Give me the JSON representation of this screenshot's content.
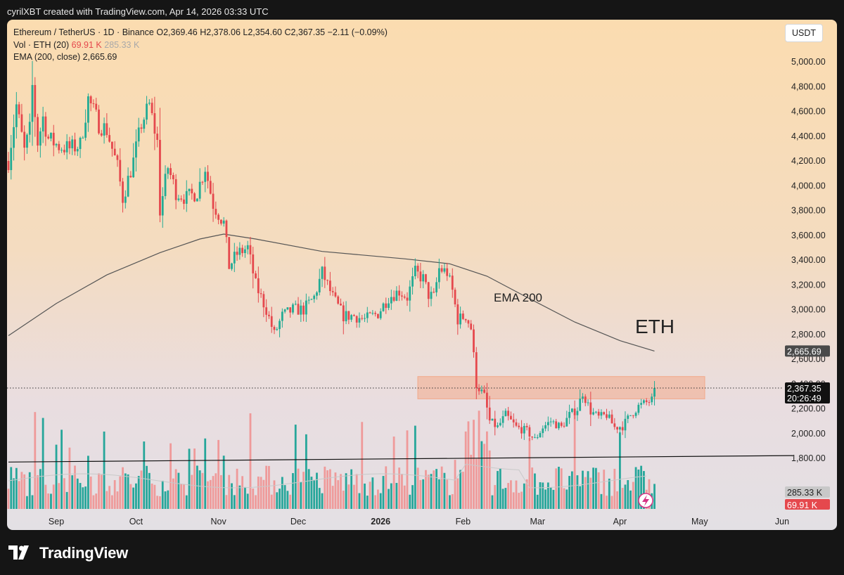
{
  "header": {
    "attribution": "cyrilXBT created with TradingView.com, Apr 14, 2026 03:33 UTC"
  },
  "legend": {
    "symbol_line": "Ethereum / TetherUS · 1D · Binance",
    "ohlc": "O2,369.46  H2,378.06  L2,354.60  C2,367.35  −2.11 (−0.09%)",
    "vol_label": "Vol · ETH (20)",
    "vol_value": "69.91 K",
    "vol_ma": "285.33 K",
    "ema_label": "EMA (200, close)",
    "ema_value": "2,665.69"
  },
  "currency_button": "USDT",
  "footer": {
    "logo_text": "TradingView",
    "logo_icon": "tradingview-logo-icon"
  },
  "badges": {
    "ema": "2,665.69",
    "price": "2,367.35",
    "countdown": "20:26:49",
    "vol_ma": "285.33 K",
    "vol": "69.91 K"
  },
  "colors": {
    "up": "#22ab94",
    "down": "#e5484d",
    "vol_up": "#26a69a",
    "vol_down": "#ef9a9a",
    "zone": "#f2a98a",
    "ema_line": "#555555"
  },
  "chart_data": {
    "type": "candlestick",
    "title": "Ethereum / TetherUS · 1D · Binance",
    "annotations": [
      "ETH",
      "EMA 200"
    ],
    "y_ticks": [
      1800,
      2000,
      2200,
      2400,
      2600,
      2800,
      3000,
      3200,
      3400,
      3600,
      3800,
      4000,
      4200,
      4400,
      4600,
      4800,
      5000
    ],
    "y_tick_labels": [
      "1,800.00",
      "2,000.00",
      "2,200.00",
      "2,400.00",
      "2,600.00",
      "2,800.00",
      "3,000.00",
      "3,200.00",
      "3,400.00",
      "3,600.00",
      "3,800.00",
      "4,000.00",
      "4,200.00",
      "4,400.00",
      "4,600.00",
      "4,800.00",
      "5,000.00"
    ],
    "x_labels": [
      "Sep",
      "Oct",
      "Nov",
      "Dec",
      "2026",
      "Feb",
      "Mar",
      "Apr",
      "May",
      "Jun"
    ],
    "ylim": [
      1580,
      5180
    ],
    "grid": false,
    "last_close": 2367.35,
    "resistance_zone": [
      2280,
      2460
    ],
    "ema200": [
      [
        "Aug 14, 2025",
        2790
      ],
      [
        "Sep 1, 2025",
        3050
      ],
      [
        "Sep 20, 2025",
        3280
      ],
      [
        "Oct 10, 2025",
        3460
      ],
      [
        "Oct 25, 2025",
        3570
      ],
      [
        "Nov 3, 2025",
        3610
      ],
      [
        "Nov 15, 2025",
        3570
      ],
      [
        "Dec 10, 2025",
        3470
      ],
      [
        "Jan 10, 2026",
        3410
      ],
      [
        "Jan 27, 2026",
        3370
      ],
      [
        "Feb 10, 2026",
        3270
      ],
      [
        "Feb 25, 2026",
        3100
      ],
      [
        "Mar 15, 2026",
        2900
      ],
      [
        "Apr 1, 2026",
        2750
      ],
      [
        "Apr 14, 2026",
        2665.69
      ]
    ],
    "trendline": [
      [
        "Aug 14, 2025",
        1770
      ],
      [
        "Jun 5, 2026",
        1822
      ]
    ],
    "price_path": [
      [
        "Aug 14, 2025",
        4200
      ],
      [
        "Aug 17, 2025",
        4650
      ],
      [
        "Aug 20, 2025",
        4280
      ],
      [
        "Aug 22, 2025",
        4450
      ],
      [
        "Aug 23, 2025",
        4800
      ],
      [
        "Aug 25, 2025",
        4350
      ],
      [
        "Aug 27, 2025",
        4550
      ],
      [
        "Aug 29, 2025",
        4380
      ],
      [
        "Sep 2, 2025",
        4320
      ],
      [
        "Sep 6, 2025",
        4300
      ],
      [
        "Sep 10, 2025",
        4330
      ],
      [
        "Sep 13, 2025",
        4700
      ],
      [
        "Sep 17, 2025",
        4500
      ],
      [
        "Sep 20, 2025",
        4450
      ],
      [
        "Sep 24, 2025",
        4150
      ],
      [
        "Sep 26, 2025",
        3900
      ],
      [
        "Sep 30, 2025",
        4200
      ],
      [
        "Oct 3, 2025",
        4500
      ],
      [
        "Oct 6, 2025",
        4650
      ],
      [
        "Oct 9, 2025",
        4350
      ],
      [
        "Oct 10, 2025",
        3800
      ],
      [
        "Oct 13, 2025",
        4150
      ],
      [
        "Oct 16, 2025",
        3950
      ],
      [
        "Oct 20, 2025",
        3900
      ],
      [
        "Oct 24, 2025",
        3950
      ],
      [
        "Oct 27, 2025",
        4150
      ],
      [
        "Oct 30, 2025",
        3850
      ],
      [
        "Nov 3, 2025",
        3700
      ],
      [
        "Nov 5, 2025",
        3350
      ],
      [
        "Nov 8, 2025",
        3450
      ],
      [
        "Nov 12, 2025",
        3500
      ],
      [
        "Nov 15, 2025",
        3200
      ],
      [
        "Nov 19, 2025",
        3000
      ],
      [
        "Nov 22, 2025",
        2800
      ],
      [
        "Nov 25, 2025",
        2950
      ],
      [
        "Nov 29, 2025",
        3000
      ],
      [
        "Dec 3, 2025",
        3000
      ],
      [
        "Dec 7, 2025",
        3100
      ],
      [
        "Dec 10, 2025",
        3300
      ],
      [
        "Dec 14, 2025",
        3100
      ],
      [
        "Dec 18, 2025",
        2950
      ],
      [
        "Dec 22, 2025",
        2950
      ],
      [
        "Dec 26, 2025",
        2920
      ],
      [
        "Dec 31, 2025",
        2970
      ],
      [
        "Jan 4, 2026",
        3100
      ],
      [
        "Jan 8, 2026",
        3150
      ],
      [
        "Jan 11, 2026",
        3100
      ],
      [
        "Jan 14, 2026",
        3300
      ],
      [
        "Jan 17, 2026",
        3250
      ],
      [
        "Jan 19, 2026",
        3120
      ],
      [
        "Jan 21, 2026",
        3100
      ],
      [
        "Jan 23, 2026",
        3330
      ],
      [
        "Jan 26, 2026",
        3300
      ],
      [
        "Jan 28, 2026",
        3150
      ],
      [
        "Jan 30, 2026",
        2920
      ],
      [
        "Feb 2, 2026",
        2950
      ],
      [
        "Feb 4, 2026",
        2850
      ],
      [
        "Feb 6, 2026",
        2400
      ],
      [
        "Feb 9, 2026",
        2300
      ],
      [
        "Feb 11, 2026",
        2100
      ],
      [
        "Feb 14, 2026",
        2050
      ],
      [
        "Feb 17, 2026",
        2150
      ],
      [
        "Feb 21, 2026",
        2050
      ],
      [
        "Feb 25, 2026",
        2020
      ],
      [
        "Feb 28, 2026",
        1950
      ],
      [
        "Mar 3, 2026",
        2050
      ],
      [
        "Mar 6, 2026",
        2100
      ],
      [
        "Mar 10, 2026",
        2050
      ],
      [
        "Mar 13, 2026",
        2150
      ],
      [
        "Mar 16, 2026",
        2200
      ],
      [
        "Mar 18, 2026",
        2330
      ],
      [
        "Mar 21, 2026",
        2180
      ],
      [
        "Mar 24, 2026",
        2130
      ],
      [
        "Mar 27, 2026",
        2150
      ],
      [
        "Mar 30, 2026",
        2050
      ],
      [
        "Apr 2, 2026",
        2060
      ],
      [
        "Apr 5, 2026",
        2150
      ],
      [
        "Apr 8, 2026",
        2220
      ],
      [
        "Apr 11, 2026",
        2250
      ],
      [
        "Apr 13, 2026",
        2270
      ],
      [
        "Apr 14, 2026",
        2367.35
      ]
    ]
  }
}
